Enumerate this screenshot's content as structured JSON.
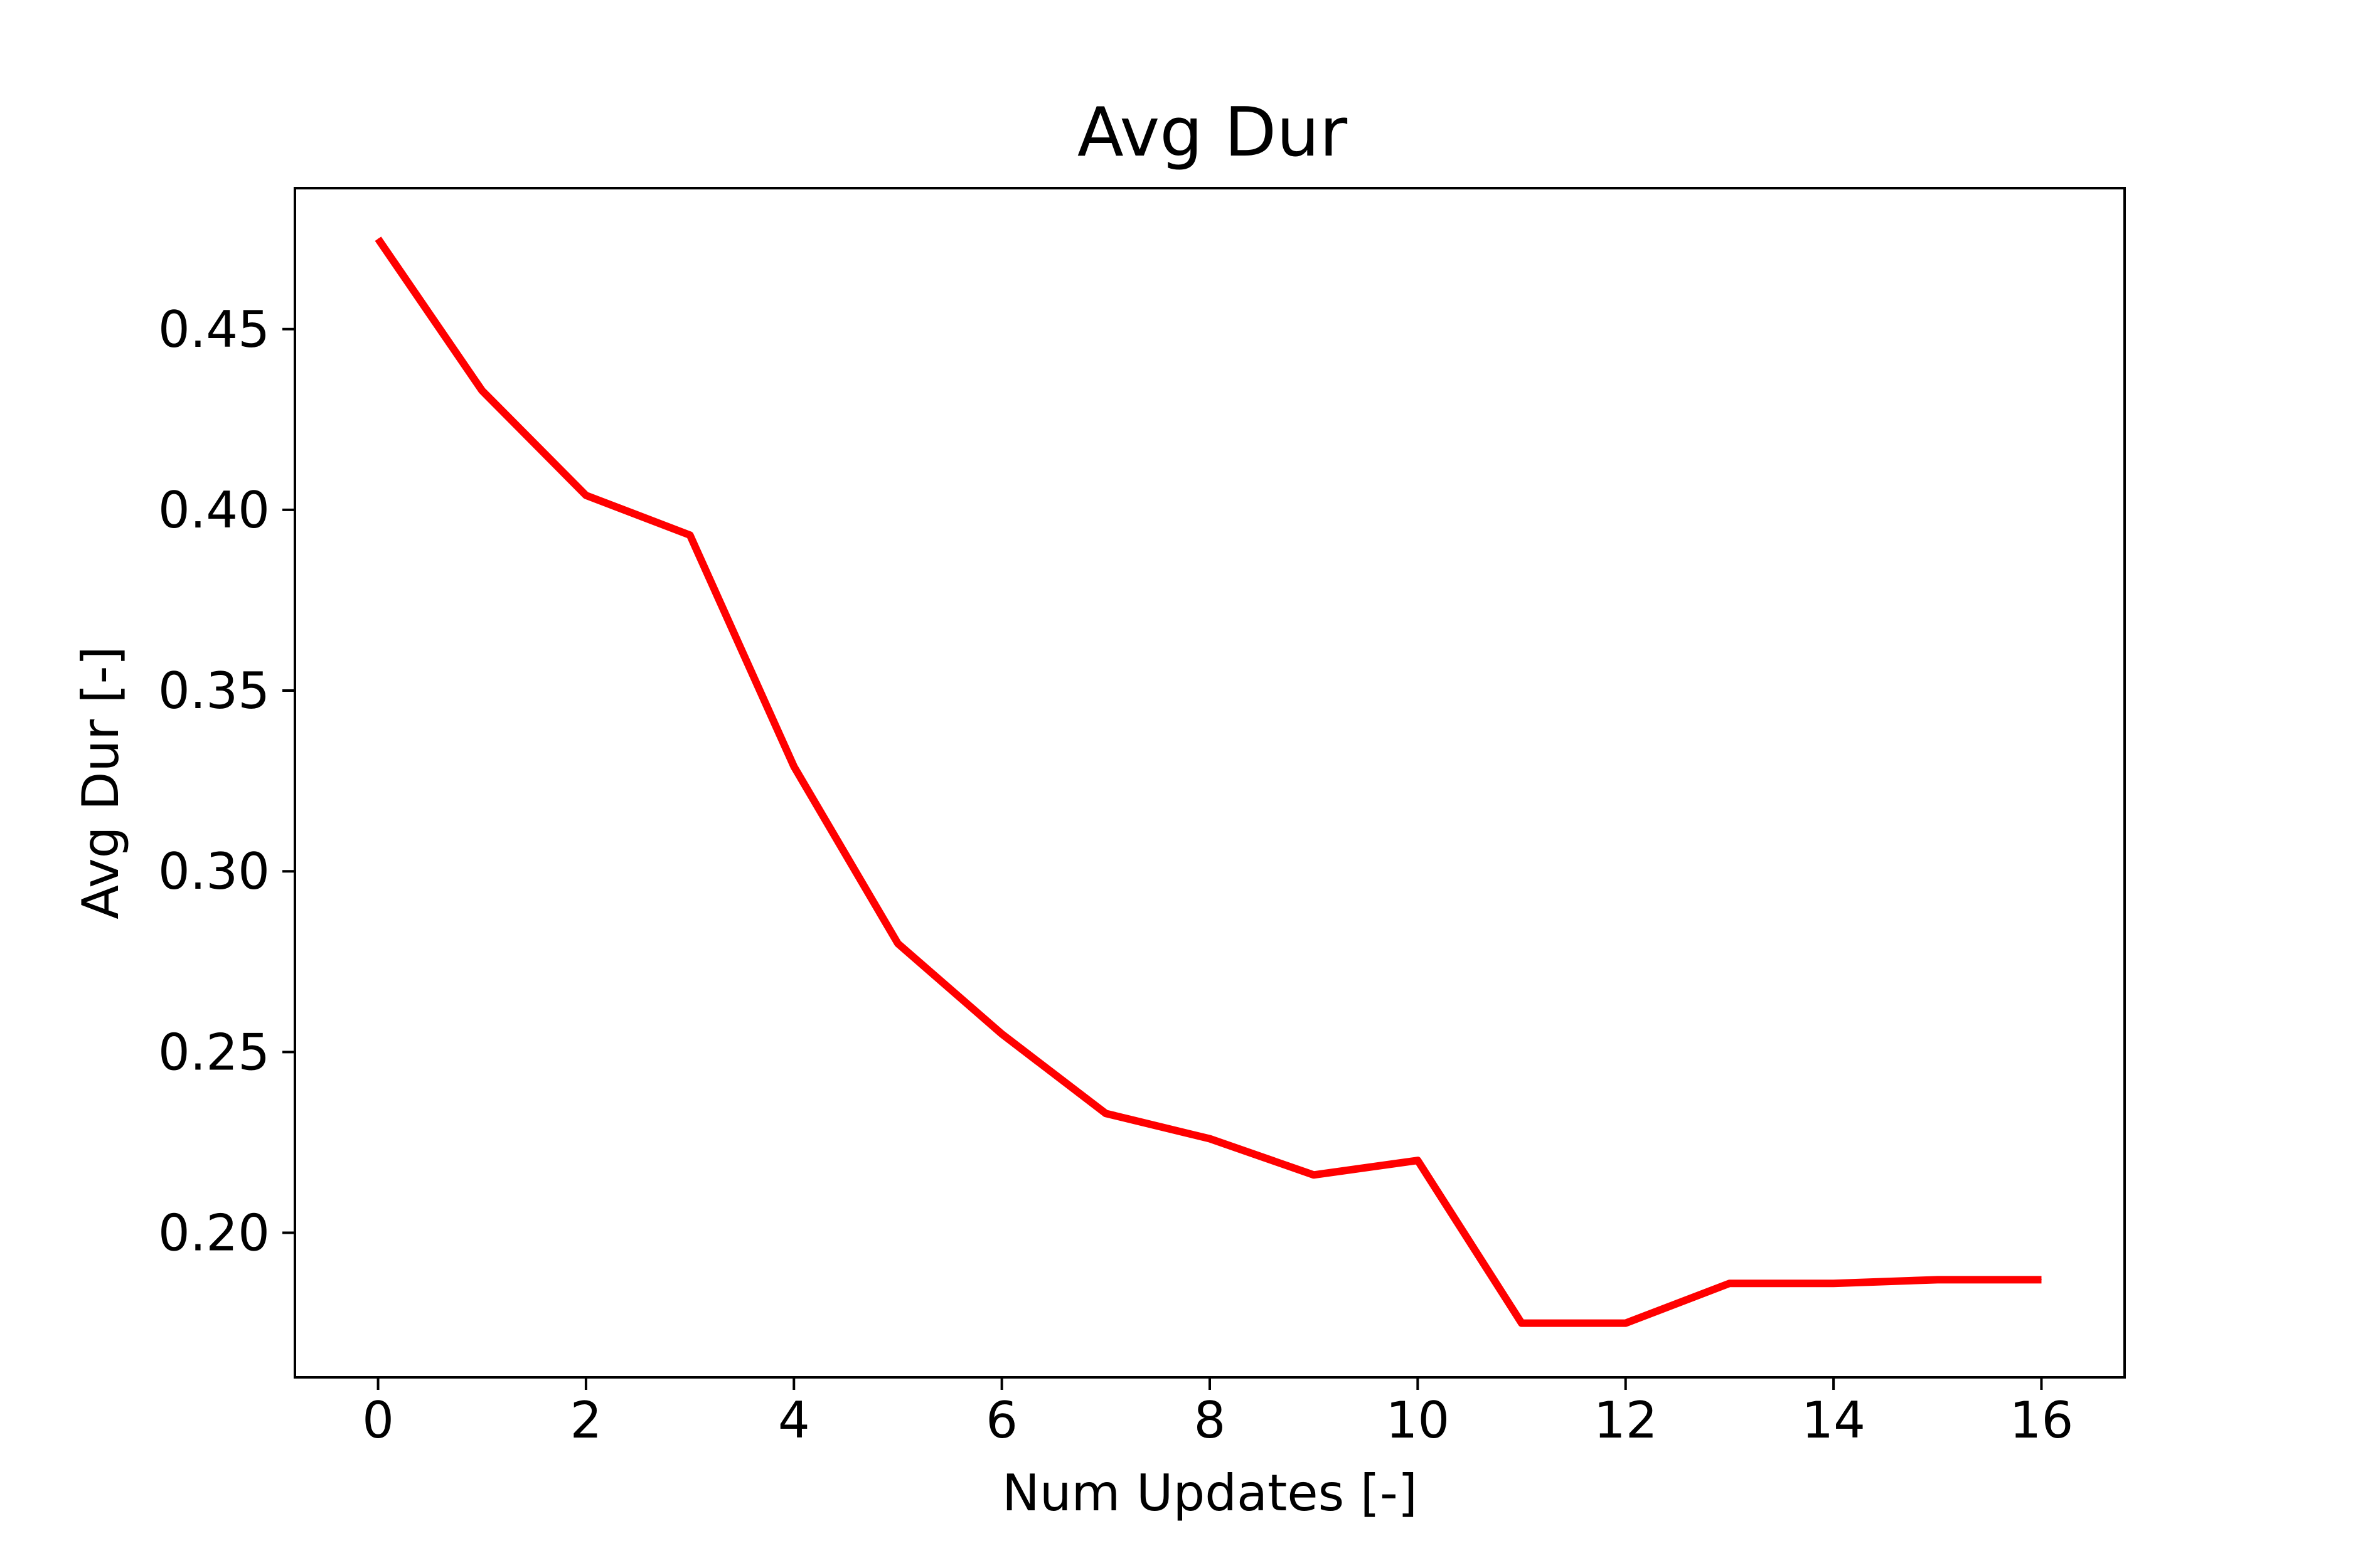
{
  "chart_data": {
    "type": "line",
    "title": "Avg Dur",
    "xlabel": "Num Updates [-]",
    "ylabel": "Avg Dur [-]",
    "xlim": [
      -0.8,
      16.8
    ],
    "ylim": [
      0.16,
      0.489
    ],
    "x_ticks": [
      0,
      2,
      4,
      6,
      8,
      10,
      12,
      14,
      16
    ],
    "x_tick_labels": [
      "0",
      "2",
      "4",
      "6",
      "8",
      "10",
      "12",
      "14",
      "16"
    ],
    "y_ticks": [
      0.2,
      0.25,
      0.3,
      0.35,
      0.4,
      0.45
    ],
    "y_tick_labels": [
      "0.20",
      "0.25",
      "0.30",
      "0.35",
      "0.40",
      "0.45"
    ],
    "grid": false,
    "legend": "none",
    "series": [
      {
        "color": "#ff0000",
        "x": [
          0,
          1,
          2,
          3,
          4,
          5,
          6,
          7,
          8,
          9,
          10,
          11,
          12,
          13,
          14,
          15,
          16
        ],
        "y": [
          0.475,
          0.433,
          0.404,
          0.393,
          0.329,
          0.28,
          0.255,
          0.233,
          0.226,
          0.216,
          0.22,
          0.175,
          0.175,
          0.186,
          0.186,
          0.187,
          0.187
        ]
      }
    ]
  }
}
